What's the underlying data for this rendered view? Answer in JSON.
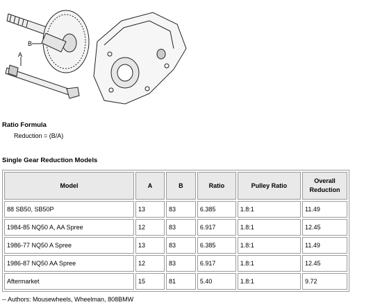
{
  "figure": {
    "labels": [
      "B",
      "A"
    ]
  },
  "ratio_formula": {
    "title": "Ratio Formula",
    "formula": "Reduction = (B/A)"
  },
  "table": {
    "title": "Single Gear Reduction Models",
    "columns": [
      "Model",
      "A",
      "B",
      "Ratio",
      "Pulley Ratio",
      "Overall Reduction"
    ],
    "rows": [
      [
        "88 SB50, SB50P",
        "13",
        "83",
        "6.385",
        "1.8:1",
        "11.49"
      ],
      [
        "1984-85 NQ50 A, AA Spree",
        "12",
        "83",
        "6.917",
        "1.8:1",
        "12.45"
      ],
      [
        "1986-77 NQ50 A Spree",
        "13",
        "83",
        "6.385",
        "1.8:1",
        "11.49"
      ],
      [
        "1986-87 NQ50 AA Spree",
        "12",
        "83",
        "6.917",
        "1.8:1",
        "12.45"
      ],
      [
        "Aftermarket",
        "15",
        "81",
        "5.40",
        "1.8:1",
        "9.72"
      ]
    ]
  },
  "footer": "-- Authors: Mousewheels, Wheelman, 808BMW"
}
